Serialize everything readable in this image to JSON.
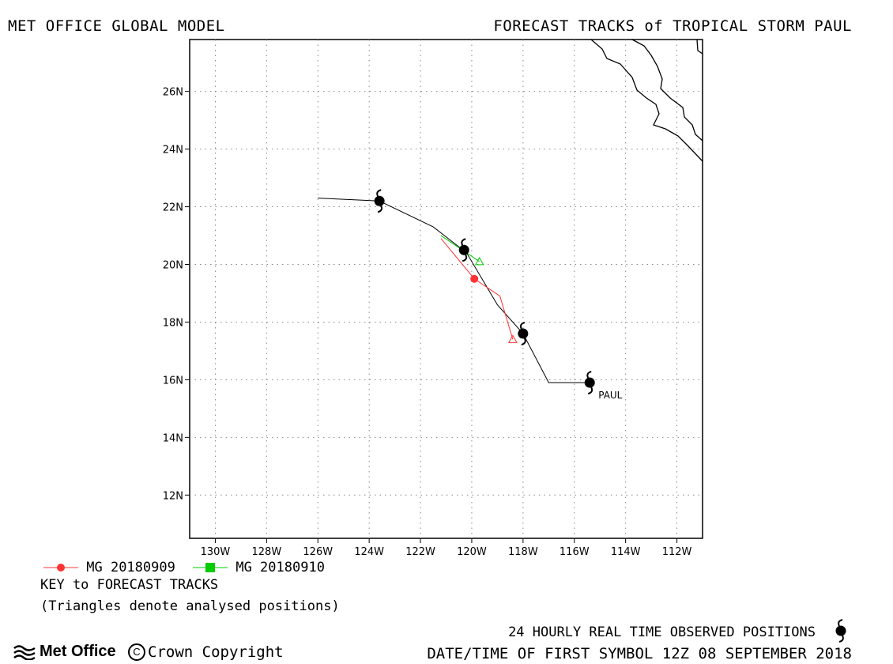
{
  "header": {
    "left": "MET OFFICE GLOBAL MODEL",
    "right": "FORECAST TRACKS of TROPICAL STORM PAUL"
  },
  "map": {
    "lon_range": [
      -131,
      -111
    ],
    "lat_range": [
      10.5,
      27.8
    ],
    "lon_ticks": [
      -130,
      -128,
      -126,
      -124,
      -122,
      -120,
      -118,
      -116,
      -114,
      -112
    ],
    "lon_tick_labels": [
      "130W",
      "128W",
      "126W",
      "124W",
      "122W",
      "120W",
      "118W",
      "116W",
      "114W",
      "112W"
    ],
    "lat_ticks": [
      12,
      14,
      16,
      18,
      20,
      22,
      24,
      26
    ],
    "lat_tick_labels": [
      "12N",
      "14N",
      "16N",
      "18N",
      "20N",
      "22N",
      "24N",
      "26N"
    ],
    "grid": "dotted"
  },
  "tracks": {
    "observed": {
      "color": "#000000",
      "points": [
        [
          -115.4,
          15.9
        ],
        [
          -117.0,
          15.9
        ],
        [
          -118.0,
          17.6
        ],
        [
          -119.0,
          18.6
        ],
        [
          -120.2,
          20.4
        ],
        [
          -121.5,
          21.3
        ],
        [
          -123.6,
          22.2
        ],
        [
          -126.0,
          22.3
        ]
      ],
      "symbol_positions": [
        [
          -115.4,
          15.9
        ],
        [
          -118.0,
          17.6
        ],
        [
          -120.3,
          20.5
        ],
        [
          -123.6,
          22.2
        ]
      ],
      "storm_label": "PAUL"
    },
    "mg_20180909": {
      "color": "#ff3333",
      "label": "MG 20180909",
      "points": [
        [
          -118.4,
          17.4
        ],
        [
          -118.9,
          18.9
        ],
        [
          -119.9,
          19.5
        ],
        [
          -121.2,
          20.9
        ]
      ],
      "analysis_triangle": [
        -118.4,
        17.4
      ],
      "marker": [
        -119.9,
        19.5
      ]
    },
    "mg_20180910": {
      "color": "#00cc00",
      "label": "MG 20180910",
      "points": [
        [
          -119.7,
          20.1
        ],
        [
          -121.2,
          21.0
        ]
      ],
      "analysis_triangle": [
        -119.7,
        20.1
      ]
    }
  },
  "key": {
    "title": "KEY to FORECAST TRACKS",
    "note": "(Triangles denote analysed positions)"
  },
  "footer": {
    "observed": "24 HOURLY REAL TIME OBSERVED POSITIONS",
    "first_symbol": "DATE/TIME OF FIRST SYMBOL 12Z 08 SEPTEMBER 2018",
    "logo": "Met Office",
    "copyright": "Crown Copyright",
    "copyright_icon": "copyright-icon"
  }
}
